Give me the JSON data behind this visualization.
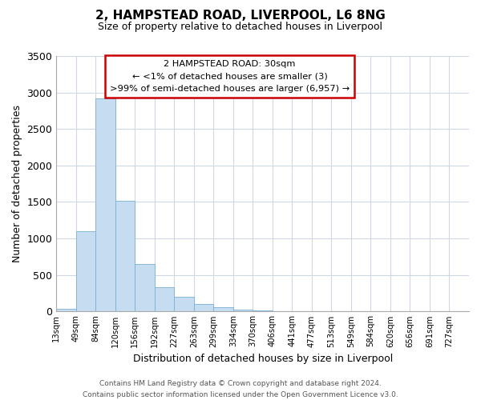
{
  "title": "2, HAMPSTEAD ROAD, LIVERPOOL, L6 8NG",
  "subtitle": "Size of property relative to detached houses in Liverpool",
  "xlabel": "Distribution of detached houses by size in Liverpool",
  "ylabel": "Number of detached properties",
  "bar_values": [
    35,
    1100,
    2920,
    1510,
    650,
    330,
    200,
    95,
    55,
    25,
    10,
    5,
    2,
    1,
    0,
    0,
    0,
    0,
    0,
    0
  ],
  "bar_labels": [
    "13sqm",
    "49sqm",
    "84sqm",
    "120sqm",
    "156sqm",
    "192sqm",
    "227sqm",
    "263sqm",
    "299sqm",
    "334sqm",
    "370sqm",
    "406sqm",
    "441sqm",
    "477sqm",
    "513sqm",
    "549sqm",
    "584sqm",
    "620sqm",
    "656sqm",
    "691sqm"
  ],
  "xtick_labels": [
    "13sqm",
    "49sqm",
    "84sqm",
    "120sqm",
    "156sqm",
    "192sqm",
    "227sqm",
    "263sqm",
    "299sqm",
    "334sqm",
    "370sqm",
    "406sqm",
    "441sqm",
    "477sqm",
    "513sqm",
    "549sqm",
    "584sqm",
    "620sqm",
    "656sqm",
    "691sqm",
    "727sqm"
  ],
  "bar_color": "#c6dcf0",
  "bar_edge_color": "#7aafd4",
  "annotation_line1": "2 HAMPSTEAD ROAD: 30sqm",
  "annotation_line2": "← <1% of detached houses are smaller (3)",
  "annotation_line3": ">99% of semi-detached houses are larger (6,957) →",
  "annotation_box_color": "white",
  "annotation_box_edge_color": "#cc0000",
  "ylim": [
    0,
    3500
  ],
  "yticks": [
    0,
    500,
    1000,
    1500,
    2000,
    2500,
    3000,
    3500
  ],
  "footer_line1": "Contains HM Land Registry data © Crown copyright and database right 2024.",
  "footer_line2": "Contains public sector information licensed under the Open Government Licence v3.0.",
  "grid_color": "#d0d8e8",
  "spine_color": "#aaaaaa"
}
